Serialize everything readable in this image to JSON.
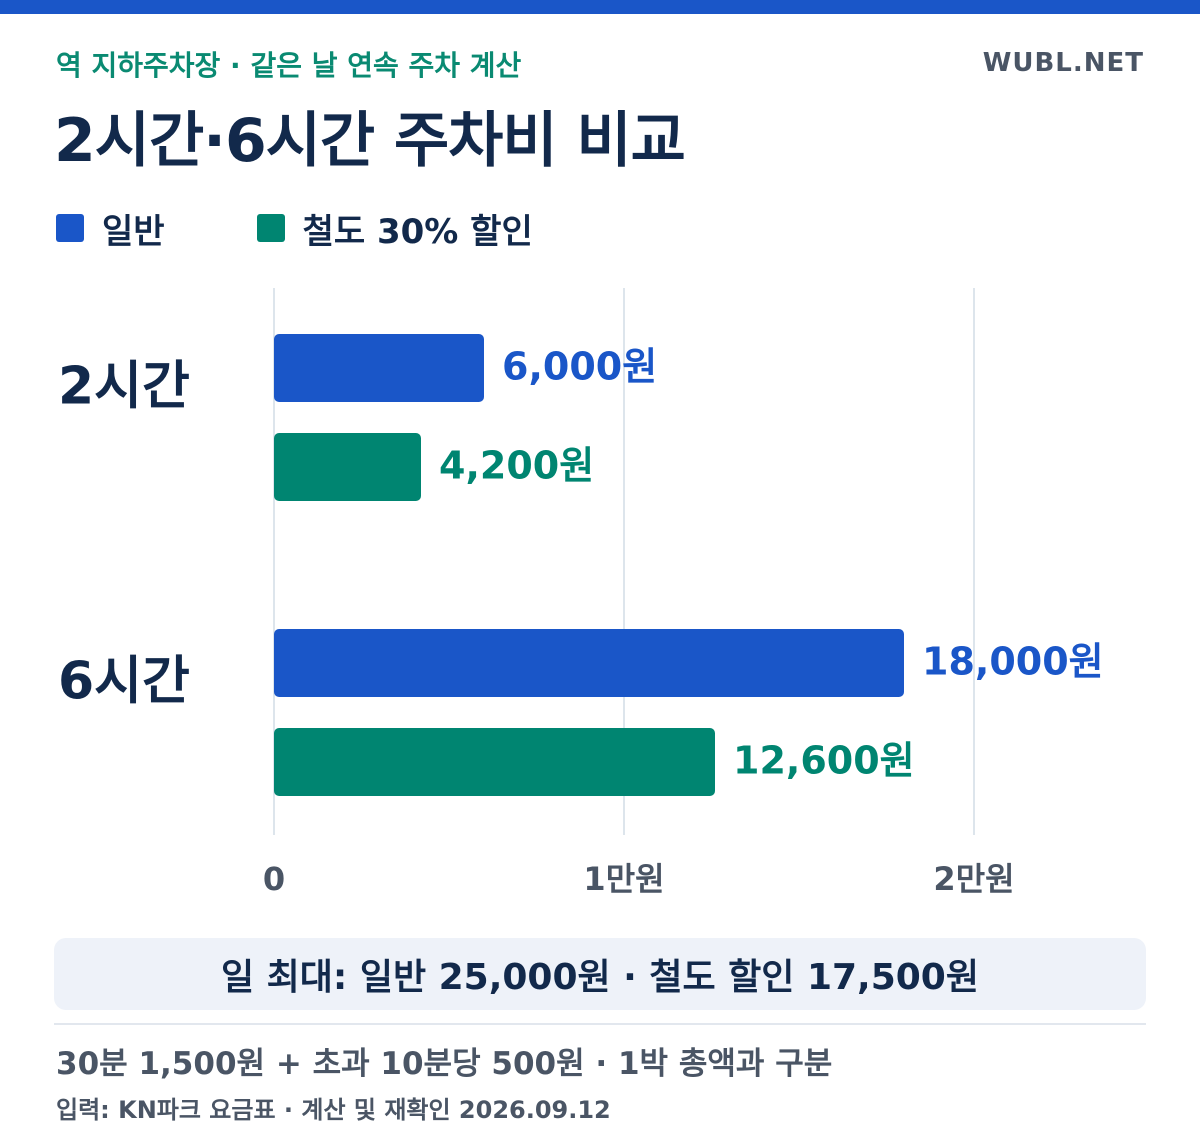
{
  "header": {
    "subtitle": "역 지하주차장 · 같은 날 연속 주차 계산",
    "brand": "WUBL.NET",
    "title": "2시간·6시간 주차비 비교"
  },
  "legend": [
    {
      "label": "일반",
      "color": "#1a56c8"
    },
    {
      "label": "철도 30% 할인",
      "color": "#008571"
    }
  ],
  "chart_data": {
    "type": "bar",
    "orientation": "horizontal",
    "categories": [
      "2시간",
      "6시간"
    ],
    "series": [
      {
        "name": "일반",
        "values": [
          6000,
          18000
        ],
        "labels": [
          "6,000원",
          "18,000원"
        ],
        "color": "#1a56c8"
      },
      {
        "name": "철도 30% 할인",
        "values": [
          4200,
          12600
        ],
        "labels": [
          "4,200원",
          "12,600원"
        ],
        "color": "#008571"
      }
    ],
    "xlim": [
      0,
      20000
    ],
    "xticks": [
      0,
      10000,
      20000
    ],
    "xtick_labels": [
      "0",
      "1만원",
      "2만원"
    ],
    "grid": true,
    "legend_position": "top-left"
  },
  "footer": {
    "highlight": "일 최대: 일반 25,000원 · 철도 할인 17,500원",
    "note": "30분 1,500원 + 초과 10분당 500원 · 1박 총액과 구분",
    "source": "입력: KN파크 요금표 · 계산 및 재확인 2026.09.12"
  }
}
